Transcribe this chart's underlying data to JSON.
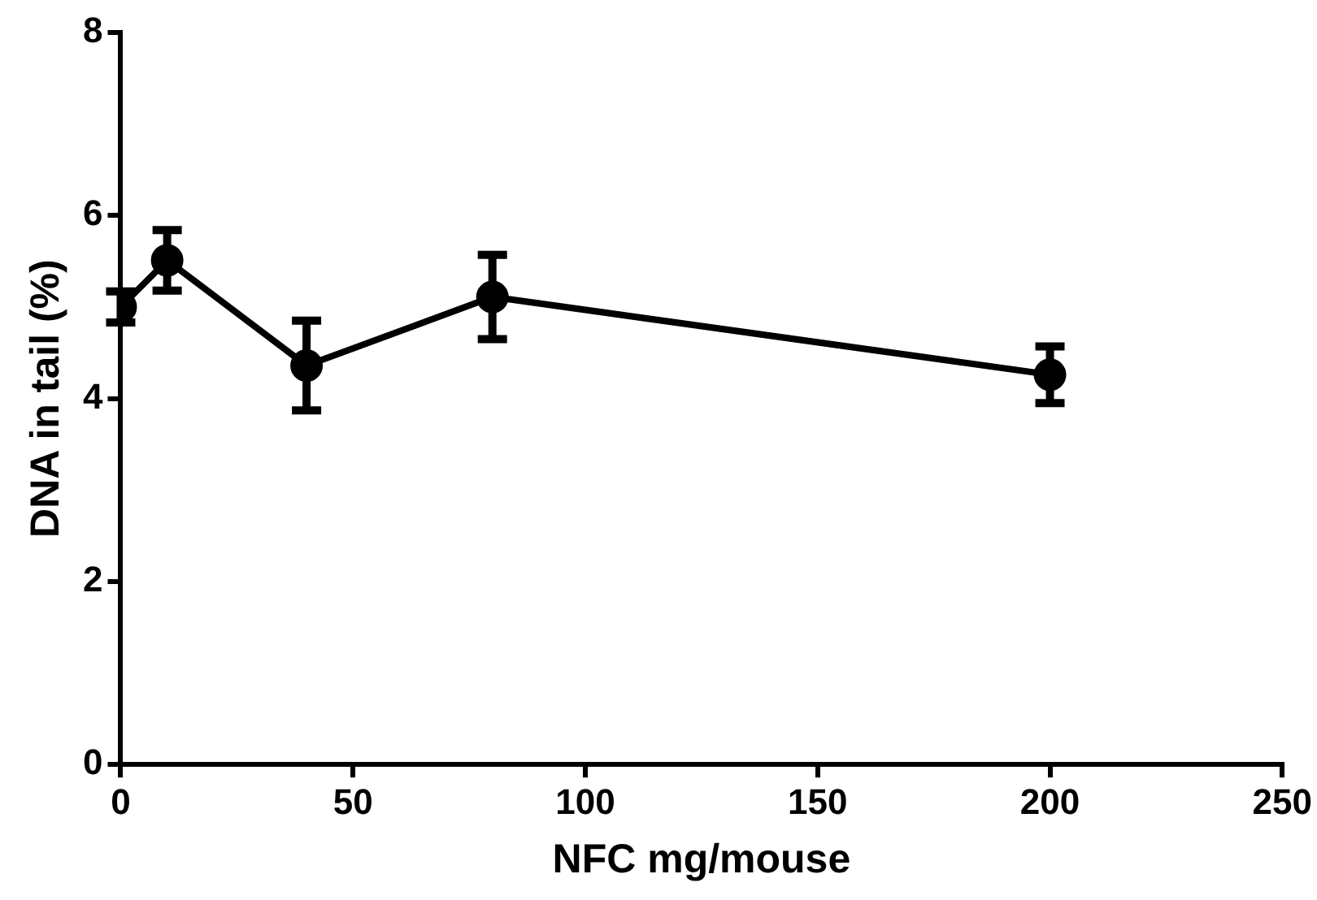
{
  "chart_data": {
    "type": "line",
    "xlabel": "NFC mg/mouse",
    "ylabel": "DNA in tail (%)",
    "x": [
      0,
      10,
      40,
      80,
      200
    ],
    "series": [
      {
        "color": "#000000",
        "values": [
          5.0,
          5.51,
          4.36,
          5.11,
          4.26
        ],
        "errors": [
          0.17,
          0.33,
          0.49,
          0.46,
          0.31
        ]
      }
    ],
    "xlim": [
      0,
      250
    ],
    "xticks": [
      0,
      50,
      100,
      150,
      200,
      250
    ],
    "ylim": [
      0,
      8
    ],
    "yticks": [
      0,
      2,
      4,
      6,
      8
    ],
    "grid": false,
    "legend": false,
    "marker": "circle",
    "line_style": "solid"
  }
}
